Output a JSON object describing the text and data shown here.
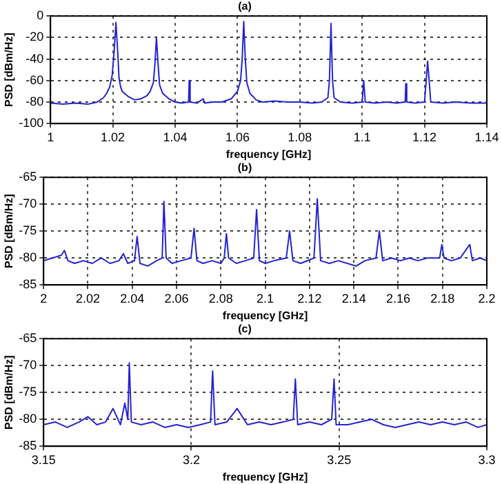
{
  "chart_data": [
    {
      "type": "line",
      "title": "(a)",
      "xlabel": "frequency [GHz]",
      "ylabel": "PSD [dBm/Hz]",
      "xlim": [
        1,
        1.14
      ],
      "xticks": [
        1,
        1.02,
        1.04,
        1.06,
        1.08,
        1.1,
        1.12,
        1.14
      ],
      "ylim": [
        -100,
        0
      ],
      "yticks": [
        -100,
        -80,
        -60,
        -40,
        -20,
        0
      ],
      "grid": true,
      "line_style": "solid",
      "x": [
        1,
        1.004,
        1.008,
        1.012,
        1.015,
        1.017,
        1.018,
        1.019,
        1.0198,
        1.0205,
        1.021,
        1.0215,
        1.022,
        1.0225,
        1.023,
        1.025,
        1.027,
        1.029,
        1.031,
        1.032,
        1.033,
        1.0335,
        1.034,
        1.0345,
        1.035,
        1.036,
        1.038,
        1.04,
        1.042,
        1.0443,
        1.0445,
        1.0448,
        1.047,
        1.049,
        1.0495,
        1.052,
        1.055,
        1.058,
        1.06,
        1.061,
        1.0615,
        1.062,
        1.0625,
        1.063,
        1.064,
        1.066,
        1.068,
        1.072,
        1.076,
        1.08,
        1.084,
        1.087,
        1.089,
        1.0895,
        1.09,
        1.0905,
        1.091,
        1.093,
        1.097,
        1.1,
        1.1005,
        1.101,
        1.104,
        1.108,
        1.111,
        1.1138,
        1.114,
        1.1143,
        1.117,
        1.12,
        1.1205,
        1.121,
        1.1215,
        1.122,
        1.126,
        1.13,
        1.135,
        1.14
      ],
      "series": [
        {
          "color": "#2323d2",
          "values": [
            -81,
            -82,
            -81,
            -82,
            -80,
            -76,
            -72,
            -66,
            -55,
            -30,
            -6,
            -30,
            -58,
            -66,
            -70,
            -75,
            -78,
            -77,
            -74,
            -70,
            -62,
            -45,
            -20,
            -44,
            -64,
            -72,
            -77,
            -80,
            -81,
            -80,
            -60,
            -80,
            -81,
            -77,
            -81,
            -80,
            -80,
            -77,
            -70,
            -60,
            -40,
            -5,
            -40,
            -62,
            -72,
            -78,
            -80,
            -79,
            -80,
            -80,
            -81,
            -80,
            -76,
            -60,
            -7,
            -60,
            -76,
            -80,
            -81,
            -80,
            -60,
            -80,
            -81,
            -80,
            -81,
            -80,
            -63,
            -80,
            -81,
            -80,
            -62,
            -42,
            -60,
            -80,
            -81,
            -80,
            -81,
            -81
          ]
        }
      ]
    },
    {
      "type": "line",
      "title": "(b)",
      "xlabel": "frequency [GHz]",
      "ylabel": "PSD [dBm/Hz]",
      "xlim": [
        2,
        2.2
      ],
      "xticks": [
        2,
        2.02,
        2.04,
        2.06,
        2.08,
        2.1,
        2.12,
        2.14,
        2.16,
        2.18,
        2.2
      ],
      "ylim": [
        -85,
        -65
      ],
      "yticks": [
        -85,
        -80,
        -75,
        -70,
        -65
      ],
      "grid": true,
      "line_style": "solid",
      "x": [
        2,
        2.004,
        2.008,
        2.0094,
        2.011,
        2.014,
        2.018,
        2.022,
        2.026,
        2.03,
        2.034,
        2.036,
        2.038,
        2.041,
        2.0422,
        2.0435,
        2.047,
        2.051,
        2.0535,
        2.0543,
        2.0553,
        2.058,
        2.062,
        2.0665,
        2.0679,
        2.0692,
        2.072,
        2.076,
        2.08,
        2.0815,
        2.0825,
        2.0835,
        2.087,
        2.091,
        2.0948,
        2.0961,
        2.0974,
        2.1,
        2.104,
        2.1095,
        2.111,
        2.1125,
        2.116,
        2.122,
        2.1235,
        2.125,
        2.129,
        2.133,
        2.137,
        2.141,
        2.145,
        2.15,
        2.1515,
        2.153,
        2.157,
        2.161,
        2.165,
        2.169,
        2.173,
        2.1787,
        2.1797,
        2.1807,
        2.184,
        2.188,
        2.1923,
        2.1935,
        2.197,
        2.2
      ],
      "series": [
        {
          "color": "#2323d2",
          "values": [
            -80.5,
            -80,
            -79.5,
            -78.6,
            -80.5,
            -81,
            -80.5,
            -81,
            -80,
            -81,
            -80.5,
            -79.2,
            -81,
            -80.5,
            -76,
            -81,
            -81.5,
            -80.5,
            -80,
            -69.5,
            -80,
            -81,
            -80.5,
            -80,
            -74.5,
            -80.5,
            -81,
            -80.5,
            -81,
            -80,
            -75.5,
            -80,
            -81,
            -80.5,
            -80,
            -71,
            -80.5,
            -81,
            -80.5,
            -80,
            -75,
            -80.5,
            -81,
            -80,
            -69,
            -80.5,
            -81,
            -80.5,
            -81,
            -81.5,
            -80.5,
            -80,
            -75,
            -80.5,
            -80,
            -80.5,
            -80,
            -80.5,
            -80,
            -80,
            -77.5,
            -80,
            -80.5,
            -80,
            -77.5,
            -80.5,
            -80,
            -80.5
          ]
        }
      ]
    },
    {
      "type": "line",
      "title": "(c)",
      "xlabel": "frequency [GHz]",
      "ylabel": "PSD [dBm/Hz]",
      "xlim": [
        3.15,
        3.3
      ],
      "xticks": [
        3.15,
        3.2,
        3.25,
        3.3
      ],
      "ylim": [
        -85,
        -65
      ],
      "yticks": [
        -85,
        -80,
        -75,
        -70,
        -65
      ],
      "grid": true,
      "line_style": "solid",
      "x": [
        3.15,
        3.154,
        3.158,
        3.162,
        3.165,
        3.168,
        3.171,
        3.1735,
        3.176,
        3.1775,
        3.1785,
        3.179,
        3.1797,
        3.183,
        3.187,
        3.191,
        3.195,
        3.199,
        3.203,
        3.2065,
        3.2072,
        3.208,
        3.212,
        3.2155,
        3.219,
        3.223,
        3.227,
        3.231,
        3.2345,
        3.2352,
        3.236,
        3.24,
        3.244,
        3.2475,
        3.2483,
        3.249,
        3.253,
        3.257,
        3.261,
        3.265,
        3.269,
        3.273,
        3.277,
        3.281,
        3.285,
        3.289,
        3.293,
        3.297,
        3.3
      ],
      "series": [
        {
          "color": "#2323d2",
          "values": [
            -81,
            -80.5,
            -81.5,
            -80.5,
            -79.5,
            -81,
            -80.5,
            -78,
            -81,
            -77,
            -80,
            -69.5,
            -80.5,
            -81,
            -80.5,
            -81.5,
            -81,
            -81.5,
            -81,
            -80.5,
            -71,
            -81,
            -80.5,
            -78,
            -81,
            -80.5,
            -81,
            -80.5,
            -80,
            -72.5,
            -81,
            -80.5,
            -81,
            -80,
            -72.5,
            -81,
            -81,
            -80.5,
            -80,
            -81,
            -81.5,
            -81,
            -80.5,
            -81,
            -80.5,
            -81,
            -80.5,
            -81.5,
            -81
          ]
        }
      ]
    }
  ]
}
